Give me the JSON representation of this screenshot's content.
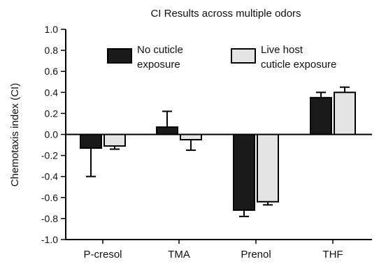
{
  "chart_data": {
    "type": "bar",
    "title": "CI Results across multiple odors",
    "xlabel": "",
    "ylabel": "Chemotaxis index (CI)",
    "ylim": [
      -1.0,
      1.0
    ],
    "yticks": [
      "1.0",
      "0.8",
      "0.6",
      "0.4",
      "0.2",
      "0.0",
      "-0.2",
      "-0.4",
      "-0.6",
      "-0.8",
      "-1.0"
    ],
    "ytick_values": [
      1.0,
      0.8,
      0.6,
      0.4,
      0.2,
      0.0,
      -0.2,
      -0.4,
      -0.6,
      -0.8,
      -1.0
    ],
    "categories": [
      "P-cresol",
      "TMA",
      "Prenol",
      "THF"
    ],
    "series": [
      {
        "name": "No cuticle exposure",
        "legend_lines": [
          "No cuticle",
          "exposure"
        ],
        "color": "#1a1a1a",
        "values": [
          -0.13,
          0.07,
          -0.72,
          0.35
        ],
        "errors": [
          0.27,
          0.15,
          0.06,
          0.05
        ],
        "error_direction": [
          -1,
          1,
          -1,
          1
        ]
      },
      {
        "name": "Live host cuticle exposure",
        "legend_lines": [
          "Live host",
          "cuticle exposure"
        ],
        "color": "#e4e4e4",
        "values": [
          -0.11,
          -0.05,
          -0.64,
          0.4
        ],
        "errors": [
          0.03,
          0.1,
          0.03,
          0.05
        ],
        "error_direction": [
          -1,
          -1,
          -1,
          1
        ]
      }
    ],
    "legend": "top",
    "grid": false
  }
}
